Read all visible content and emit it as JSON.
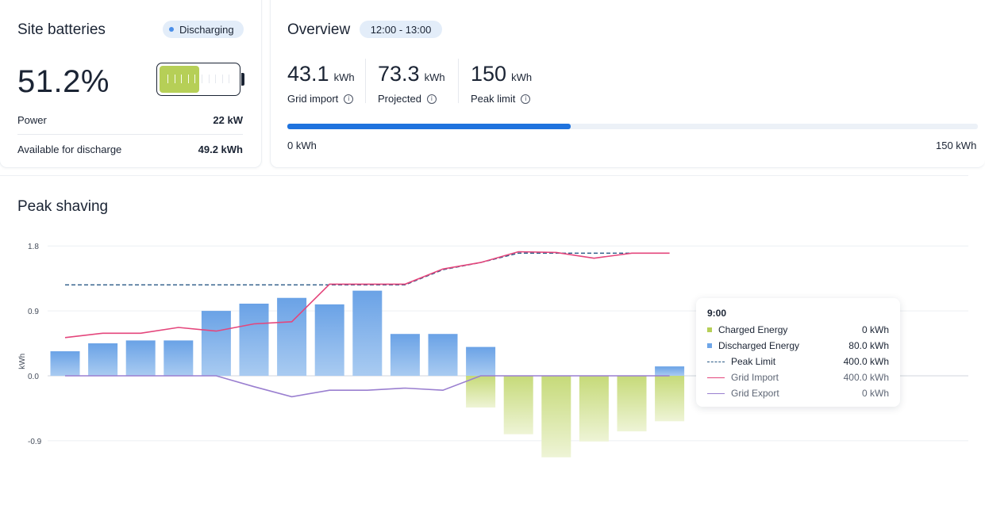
{
  "battery": {
    "title": "Site batteries",
    "status": "Discharging",
    "soc": "51.2%",
    "soc_fraction": 0.512,
    "rows": [
      {
        "label": "Power",
        "value": "22 kW"
      },
      {
        "label": "Available for discharge",
        "value": "49.2 kWh"
      }
    ]
  },
  "overview": {
    "title": "Overview",
    "time_range": "12:00 - 13:00",
    "metrics": [
      {
        "value": "43.1",
        "unit": "kWh",
        "label": "Grid import"
      },
      {
        "value": "73.3",
        "unit": "kWh",
        "label": "Projected"
      },
      {
        "value": "150",
        "unit": "kWh",
        "label": "Peak limit"
      }
    ],
    "progress_fraction": 0.41,
    "scale_min": "0 kWh",
    "scale_max": "150 kWh"
  },
  "peak_shaving": {
    "title": "Peak shaving"
  },
  "chart_data": {
    "type": "bar",
    "ylabel": "kWh",
    "y_ticks": [
      "1.8",
      "0.9",
      "0.0",
      "-0.9"
    ],
    "ylim": [
      -1.2,
      1.8
    ],
    "grid": true,
    "series": [
      {
        "name": "Discharged Energy",
        "type": "bar",
        "color": "#6fa6e8",
        "values": [
          0.34,
          0.45,
          0.49,
          0.49,
          0.9,
          1.0,
          1.08,
          0.99,
          1.18,
          0.58,
          0.58,
          0.4,
          0,
          0,
          0,
          0,
          0.13
        ]
      },
      {
        "name": "Charged Energy",
        "type": "bar",
        "color": "#cddf8a",
        "values": [
          0,
          0,
          0,
          0,
          0,
          0,
          0,
          0,
          0,
          0,
          0,
          -0.44,
          -0.81,
          -1.13,
          -0.91,
          -0.77,
          -0.63
        ]
      },
      {
        "name": "Peak Limit",
        "type": "line",
        "style": "dashed",
        "color": "#2a5a86",
        "values": [
          1.26,
          1.26,
          1.26,
          1.26,
          1.26,
          1.26,
          1.26,
          1.26,
          1.26,
          1.26,
          1.47,
          1.57,
          1.7,
          1.7,
          1.7,
          1.7,
          1.7
        ]
      },
      {
        "name": "Grid Import",
        "type": "line",
        "color": "#e4467c",
        "values": [
          0.53,
          0.59,
          0.59,
          0.67,
          0.62,
          0.72,
          0.75,
          1.27,
          1.27,
          1.27,
          1.48,
          1.57,
          1.72,
          1.71,
          1.63,
          1.7,
          1.7
        ]
      },
      {
        "name": "Grid Export",
        "type": "line",
        "color": "#9a7fd0",
        "values": [
          0.0,
          0.0,
          0.0,
          0.0,
          0.0,
          -0.15,
          -0.29,
          -0.2,
          -0.2,
          -0.17,
          -0.2,
          0.0,
          0.0,
          0.0,
          0.0,
          0.0,
          0.0
        ]
      }
    ]
  },
  "tooltip": {
    "title": "9:00",
    "rows": [
      {
        "label": "Charged Energy",
        "value": "0 kWh",
        "marker": "square",
        "color": "#b6cf57"
      },
      {
        "label": "Discharged Energy",
        "value": "80.0 kWh",
        "marker": "square",
        "color": "#6fa6e8"
      },
      {
        "label": "Peak Limit",
        "value": "400.0 kWh",
        "marker": "dashed-line",
        "color": "#2a5a86"
      },
      {
        "label": "Grid Import",
        "value": "400.0 kWh",
        "marker": "line",
        "color": "#e4467c",
        "muted": true
      },
      {
        "label": "Grid Export",
        "value": "0 kWh",
        "marker": "line",
        "color": "#9a7fd0",
        "muted": true
      }
    ]
  }
}
